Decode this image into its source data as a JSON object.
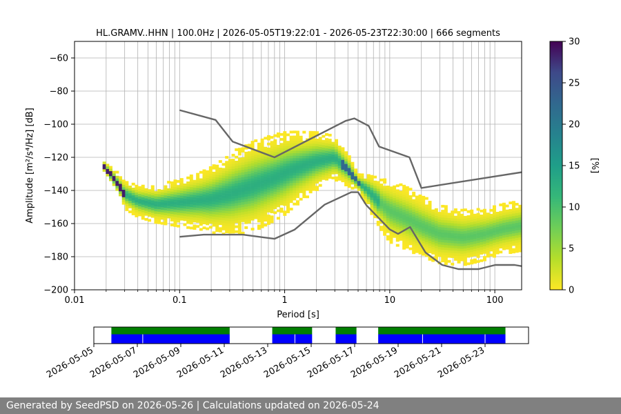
{
  "chart_data": {
    "type": "heatmap",
    "title": "HL.GRAMV..HHN | 100.0Hz | 2026-05-05T19:22:01 - 2026-05-23T22:30:00 | 666 segments",
    "xlabel": "Period [s]",
    "ylabel": "Amplitude [m²/s⁴/Hz] [dB]",
    "x_scale": "log",
    "xlim": [
      0.01,
      180
    ],
    "ylim": [
      -200,
      -50
    ],
    "xticks": [
      "0.01",
      "0.1",
      "1",
      "10",
      "100"
    ],
    "yticks": [
      "−60",
      "−80",
      "−100",
      "−120",
      "−140",
      "−160",
      "−180",
      "−200"
    ],
    "colorbar": {
      "label": "[%]",
      "range": [
        0,
        30
      ],
      "ticks": [
        "0",
        "5",
        "10",
        "15",
        "20",
        "25",
        "30"
      ],
      "colormap": "viridis_r"
    },
    "density_mode": [
      {
        "period": 0.019,
        "db": -126
      },
      {
        "period": 0.022,
        "db": -131
      },
      {
        "period": 0.026,
        "db": -137
      },
      {
        "period": 0.03,
        "db": -143
      },
      {
        "period": 0.04,
        "db": -147
      },
      {
        "period": 0.06,
        "db": -149
      },
      {
        "period": 0.1,
        "db": -148
      },
      {
        "period": 0.2,
        "db": -146
      },
      {
        "period": 0.3,
        "db": -143
      },
      {
        "period": 0.5,
        "db": -138
      },
      {
        "period": 0.8,
        "db": -133
      },
      {
        "period": 1.2,
        "db": -128
      },
      {
        "period": 2,
        "db": -123
      },
      {
        "period": 3,
        "db": -121
      },
      {
        "period": 4,
        "db": -128
      },
      {
        "period": 5,
        "db": -136
      },
      {
        "period": 6,
        "db": -140
      },
      {
        "period": 8,
        "db": -148
      },
      {
        "period": 10,
        "db": -153
      },
      {
        "period": 15,
        "db": -158
      },
      {
        "period": 20,
        "db": -162
      },
      {
        "period": 30,
        "db": -167
      },
      {
        "period": 50,
        "db": -169
      },
      {
        "period": 80,
        "db": -167
      },
      {
        "period": 120,
        "db": -164
      },
      {
        "period": 180,
        "db": -162
      }
    ],
    "nhnm": [
      {
        "period": 0.1,
        "db": -91.5
      },
      {
        "period": 0.22,
        "db": -97.4
      },
      {
        "period": 0.32,
        "db": -110.5
      },
      {
        "period": 0.8,
        "db": -120
      },
      {
        "period": 3.8,
        "db": -98
      },
      {
        "period": 4.6,
        "db": -96.5
      },
      {
        "period": 6.3,
        "db": -101
      },
      {
        "period": 7.9,
        "db": -113.5
      },
      {
        "period": 15.4,
        "db": -120
      },
      {
        "period": 20,
        "db": -138.5
      },
      {
        "period": 180,
        "db": -129
      }
    ],
    "nlnm": [
      {
        "period": 0.1,
        "db": -168
      },
      {
        "period": 0.17,
        "db": -166.7
      },
      {
        "period": 0.4,
        "db": -166.7
      },
      {
        "period": 0.8,
        "db": -169.2
      },
      {
        "period": 1.24,
        "db": -163.7
      },
      {
        "period": 2.4,
        "db": -148.6
      },
      {
        "period": 4.3,
        "db": -141.1
      },
      {
        "period": 5,
        "db": -141.1
      },
      {
        "period": 6,
        "db": -149
      },
      {
        "period": 10,
        "db": -163.5
      },
      {
        "period": 12,
        "db": -166.2
      },
      {
        "period": 15.6,
        "db": -162.1
      },
      {
        "period": 21.9,
        "db": -177.5
      },
      {
        "period": 31.6,
        "db": -185
      },
      {
        "period": 45,
        "db": -187.5
      },
      {
        "period": 70,
        "db": -187.5
      },
      {
        "period": 101,
        "db": -185
      },
      {
        "period": 154,
        "db": -185
      },
      {
        "period": 180,
        "db": -185.7
      }
    ],
    "availability": {
      "xlim": [
        "2026-05-05",
        "2026-05-25"
      ],
      "xticks": [
        "2026-05-05",
        "2026-05-07",
        "2026-05-09",
        "2026-05-11",
        "2026-05-13",
        "2026-05-15",
        "2026-05-17",
        "2026-05-19",
        "2026-05-21",
        "2026-05-23"
      ],
      "segments": [
        {
          "start": "2026-05-05T19:22",
          "end": "2026-05-11T06:00"
        },
        {
          "start": "2026-05-13T05:00",
          "end": "2026-05-15T01:00"
        },
        {
          "start": "2026-05-16T03:00",
          "end": "2026-05-17T02:00"
        },
        {
          "start": "2026-05-18T02:00",
          "end": "2026-05-23T22:30"
        }
      ],
      "blue_gaps": [
        "2026-05-07T06:00",
        "2026-05-14T06:00",
        "2026-05-20T03:00",
        "2026-05-23T00:00"
      ],
      "colors": {
        "green": "#007f00",
        "blue": "#0000ff"
      }
    },
    "colors": {
      "noise_model": "#666666",
      "grid": "#b0b0b0"
    }
  },
  "footer": {
    "text": "Generated by SeedPSD on 2026-05-26 | Calculations updated on 2026-05-24"
  }
}
